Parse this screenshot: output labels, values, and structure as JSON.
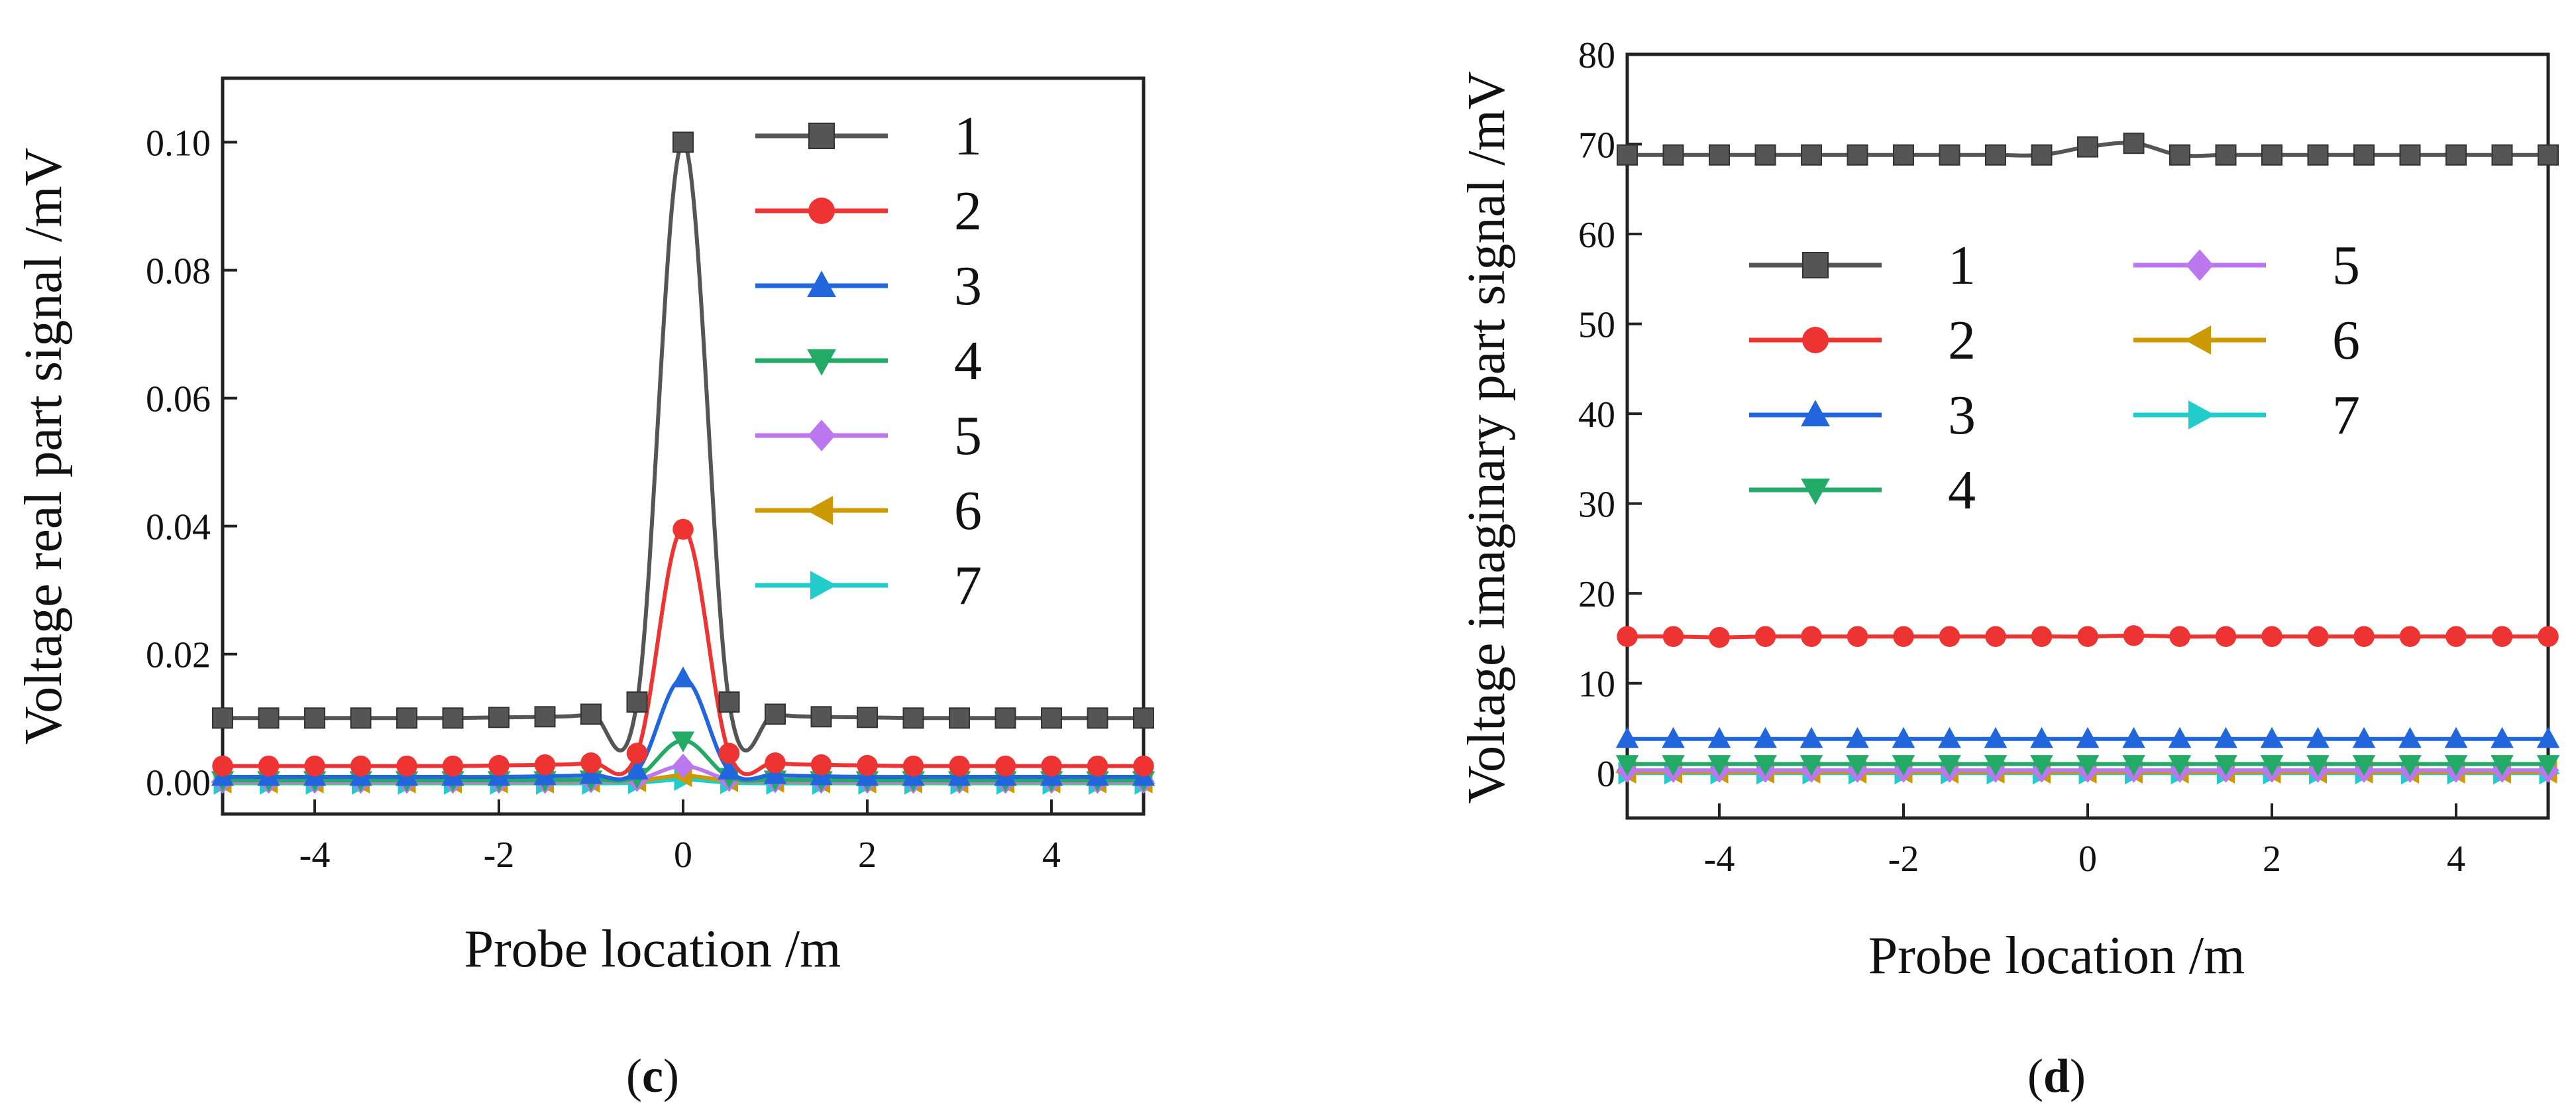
{
  "colors": [
    "#555555",
    "#ee3333",
    "#2266dd",
    "#22aa66",
    "#bb77ee",
    "#cc9900",
    "#22cccc"
  ],
  "markers": [
    "square",
    "circle",
    "triangle-up",
    "triangle-down",
    "diamond",
    "triangle-left",
    "triangle-right"
  ],
  "chart_data": [
    {
      "type": "line",
      "panel": "c",
      "xlabel": "Probe location  /m",
      "ylabel": "Voltage real part signal /mV",
      "xlim": [
        -5,
        5
      ],
      "ylim": [
        -0.005,
        0.11
      ],
      "xticks": [
        -4,
        -2,
        0,
        2,
        4
      ],
      "xtick_labels": [
        "-4",
        "-2",
        "0",
        "2",
        "4"
      ],
      "yticks": [
        0,
        0.02,
        0.04,
        0.06,
        0.08,
        0.1
      ],
      "ytick_labels": [
        "0.00",
        "0.02",
        "0.04",
        "0.06",
        "0.08",
        "0.10"
      ],
      "legend": [
        "1",
        "2",
        "3",
        "4",
        "5",
        "6",
        "7"
      ],
      "x": [
        -5,
        -4.5,
        -4,
        -3.5,
        -3,
        -2.5,
        -2,
        -1.5,
        -1,
        -0.5,
        0,
        0.5,
        1,
        1.5,
        2,
        2.5,
        3,
        3.5,
        4,
        4.5,
        5
      ],
      "series": [
        {
          "name": "1",
          "values": [
            0.01,
            0.01,
            0.01,
            0.01,
            0.01,
            0.01,
            0.0101,
            0.0102,
            0.0106,
            0.0125,
            0.1,
            0.0125,
            0.0106,
            0.0102,
            0.0101,
            0.01,
            0.01,
            0.01,
            0.01,
            0.01,
            0.01
          ]
        },
        {
          "name": "2",
          "values": [
            0.0025,
            0.0025,
            0.0025,
            0.0025,
            0.0025,
            0.0025,
            0.0026,
            0.0027,
            0.003,
            0.0045,
            0.0395,
            0.0045,
            0.003,
            0.0027,
            0.0026,
            0.0025,
            0.0025,
            0.0025,
            0.0025,
            0.0025,
            0.0025
          ]
        },
        {
          "name": "3",
          "values": [
            0.0008,
            0.0008,
            0.0008,
            0.0008,
            0.0008,
            0.0008,
            0.0008,
            0.0009,
            0.0011,
            0.0018,
            0.0162,
            0.0018,
            0.0011,
            0.0009,
            0.0008,
            0.0008,
            0.0008,
            0.0008,
            0.0008,
            0.0008,
            0.0008
          ]
        },
        {
          "name": "4",
          "values": [
            0.0003,
            0.0003,
            0.0003,
            0.0003,
            0.0003,
            0.0003,
            0.0003,
            0.0003,
            0.0004,
            0.0008,
            0.0065,
            0.0008,
            0.0004,
            0.0003,
            0.0003,
            0.0003,
            0.0003,
            0.0003,
            0.0003,
            0.0003,
            0.0003
          ]
        },
        {
          "name": "5",
          "values": [
            0.0001,
            0.0001,
            0.0001,
            0.0001,
            0.0001,
            0.0001,
            0.0001,
            0.0001,
            0.0002,
            0.0004,
            0.0025,
            0.0004,
            0.0002,
            0.0001,
            0.0001,
            0.0001,
            0.0001,
            0.0001,
            0.0001,
            0.0001,
            0.0001
          ]
        },
        {
          "name": "6",
          "values": [
            0,
            0,
            0,
            0,
            0,
            0,
            0,
            0,
            0.0001,
            0.0002,
            0.001,
            0.0002,
            0.0001,
            0,
            0,
            0,
            0,
            0,
            0,
            0,
            0
          ]
        },
        {
          "name": "7",
          "values": [
            -0.0002,
            -0.0002,
            -0.0002,
            -0.0002,
            -0.0002,
            -0.0002,
            -0.0002,
            -0.0002,
            -0.0002,
            -0.0001,
            0.0004,
            -0.0001,
            -0.0002,
            -0.0002,
            -0.0002,
            -0.0002,
            -0.0002,
            -0.0002,
            -0.0002,
            -0.0002,
            -0.0002
          ]
        }
      ]
    },
    {
      "type": "line",
      "panel": "d",
      "xlabel": "Probe location  /m",
      "ylabel": "Voltage imaginary  part signal /mV",
      "xlim": [
        -5,
        5
      ],
      "ylim": [
        -5,
        80
      ],
      "xticks": [
        -4,
        -2,
        0,
        2,
        4
      ],
      "xtick_labels": [
        "-4",
        "-2",
        "0",
        "2",
        "4"
      ],
      "yticks": [
        0,
        10,
        20,
        30,
        40,
        50,
        60,
        70,
        80
      ],
      "ytick_labels": [
        "0",
        "10",
        "20",
        "30",
        "40",
        "50",
        "60",
        "70",
        "80"
      ],
      "legend": [
        "1",
        "2",
        "3",
        "4",
        "5",
        "6",
        "7"
      ],
      "x": [
        -5,
        -4.5,
        -4,
        -3.5,
        -3,
        -2.5,
        -2,
        -1.5,
        -1,
        -0.5,
        0,
        0.5,
        1,
        1.5,
        2,
        2.5,
        3,
        3.5,
        4,
        4.5,
        5
      ],
      "series": [
        {
          "name": "1",
          "values": [
            68.8,
            68.8,
            68.8,
            68.8,
            68.8,
            68.8,
            68.8,
            68.8,
            68.8,
            68.8,
            69.7,
            70.1,
            68.8,
            68.8,
            68.8,
            68.8,
            68.8,
            68.8,
            68.8,
            68.8,
            68.8
          ]
        },
        {
          "name": "2",
          "values": [
            15.2,
            15.2,
            15.1,
            15.2,
            15.2,
            15.2,
            15.2,
            15.2,
            15.2,
            15.2,
            15.2,
            15.3,
            15.2,
            15.2,
            15.2,
            15.2,
            15.2,
            15.2,
            15.2,
            15.2,
            15.2
          ]
        },
        {
          "name": "3",
          "values": [
            3.8,
            3.8,
            3.8,
            3.8,
            3.8,
            3.8,
            3.8,
            3.8,
            3.8,
            3.8,
            3.8,
            3.8,
            3.8,
            3.8,
            3.8,
            3.8,
            3.8,
            3.8,
            3.8,
            3.8,
            3.8
          ]
        },
        {
          "name": "4",
          "values": [
            1.0,
            1.0,
            1.0,
            1.0,
            1.0,
            1.0,
            1.0,
            1.0,
            1.0,
            1.0,
            1.0,
            1.0,
            1.0,
            1.0,
            1.0,
            1.0,
            1.0,
            1.0,
            1.0,
            1.0,
            1.0
          ]
        },
        {
          "name": "5",
          "values": [
            0.3,
            0.3,
            0.3,
            0.3,
            0.3,
            0.3,
            0.3,
            0.3,
            0.3,
            0.3,
            0.3,
            0.3,
            0.3,
            0.3,
            0.3,
            0.3,
            0.3,
            0.3,
            0.3,
            0.3,
            0.3
          ]
        },
        {
          "name": "6",
          "values": [
            0.1,
            0.1,
            0.1,
            0.1,
            0.1,
            0.1,
            0.1,
            0.1,
            0.1,
            0.1,
            0.1,
            0.1,
            0.1,
            0.1,
            0.1,
            0.1,
            0.1,
            0.1,
            0.1,
            0.1,
            0.1
          ]
        },
        {
          "name": "7",
          "values": [
            0,
            0,
            0,
            0,
            0,
            0,
            0,
            0,
            0,
            0,
            0,
            0,
            0,
            0,
            0,
            0,
            0,
            0,
            0,
            0,
            0
          ]
        }
      ]
    }
  ],
  "captions": [
    "c",
    "d"
  ]
}
